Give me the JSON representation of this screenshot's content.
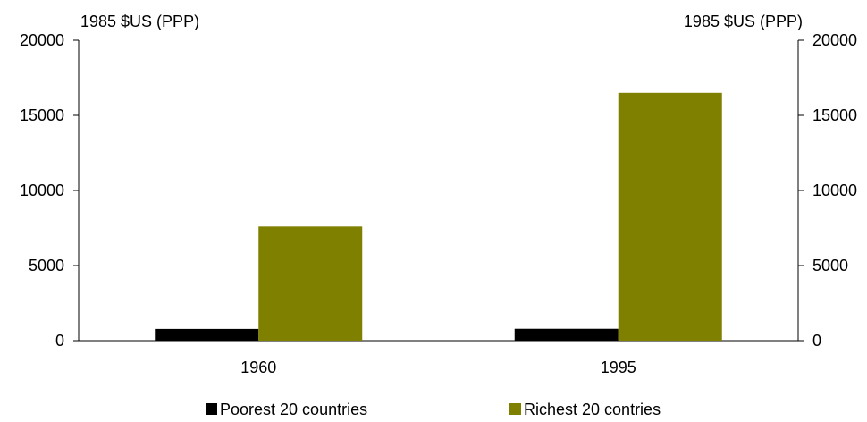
{
  "chart_data": {
    "type": "bar",
    "title": "",
    "xlabel": "",
    "ylabel_left": "1985 $US (PPP)",
    "ylabel_right": "1985 $US (PPP)",
    "categories": [
      "1960",
      "1995"
    ],
    "series": [
      {
        "name": "Poorest 20 countries",
        "values": [
          780,
          790
        ],
        "color": "#000000"
      },
      {
        "name": "Richest 20 contries",
        "values": [
          7600,
          16500
        ],
        "color": "#808000"
      }
    ],
    "ylim": [
      0,
      20000
    ],
    "yticks": [
      0,
      5000,
      10000,
      15000,
      20000
    ],
    "grid": false,
    "legend_position": "bottom",
    "secondary_axis": true
  }
}
